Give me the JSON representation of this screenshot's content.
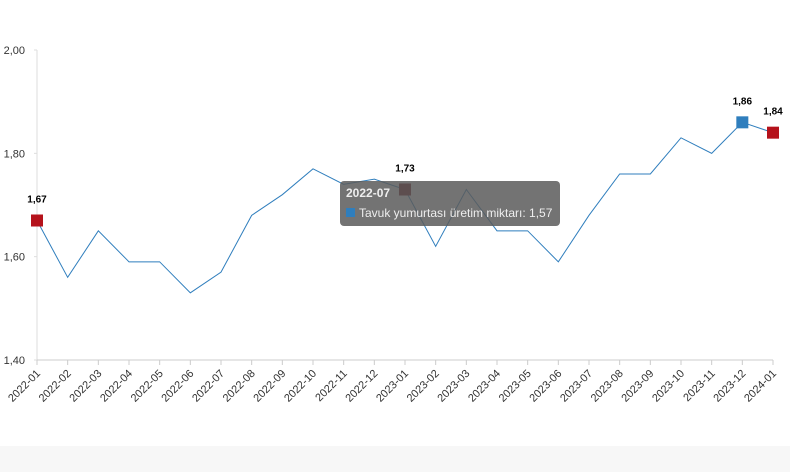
{
  "chart_data": {
    "type": "line",
    "categories": [
      "2022-01",
      "2022-02",
      "2022-03",
      "2022-04",
      "2022-05",
      "2022-06",
      "2022-07",
      "2022-08",
      "2022-09",
      "2022-10",
      "2022-11",
      "2022-12",
      "2023-01",
      "2023-02",
      "2023-03",
      "2023-04",
      "2023-05",
      "2023-06",
      "2023-07",
      "2023-08",
      "2023-09",
      "2023-10",
      "2023-11",
      "2023-12",
      "2024-01"
    ],
    "series": [
      {
        "name": "Tavuk yumurtası üretim miktarı",
        "color": "#2f7ebd",
        "values": [
          1.67,
          1.56,
          1.65,
          1.59,
          1.59,
          1.53,
          1.57,
          1.68,
          1.72,
          1.77,
          1.74,
          1.75,
          1.73,
          1.62,
          1.73,
          1.65,
          1.65,
          1.59,
          1.68,
          1.76,
          1.76,
          1.83,
          1.8,
          1.86,
          1.84
        ],
        "value_labels": [
          "1,67",
          null,
          null,
          null,
          null,
          null,
          null,
          null,
          null,
          null,
          null,
          null,
          "1,73",
          null,
          null,
          null,
          null,
          null,
          null,
          null,
          null,
          null,
          null,
          "1,86",
          "1,84"
        ],
        "marker_colors": [
          "#b5121b",
          null,
          null,
          null,
          null,
          null,
          null,
          null,
          null,
          null,
          null,
          null,
          "#6b0a0e",
          null,
          null,
          null,
          null,
          null,
          null,
          null,
          null,
          null,
          null,
          "#2f7ebd",
          "#b5121b"
        ]
      }
    ],
    "ylim": [
      1.4,
      2.0
    ],
    "yticks": [
      {
        "value": 1.4,
        "label": "1,40"
      },
      {
        "value": 1.6,
        "label": "1,60"
      },
      {
        "value": 1.8,
        "label": "1,80"
      },
      {
        "value": 2.0,
        "label": "2,00"
      }
    ],
    "grid": false,
    "tooltip": {
      "title": "2022-07",
      "text": "Tavuk yumurtası üretim miktarı: 1,57",
      "index": 6
    }
  }
}
